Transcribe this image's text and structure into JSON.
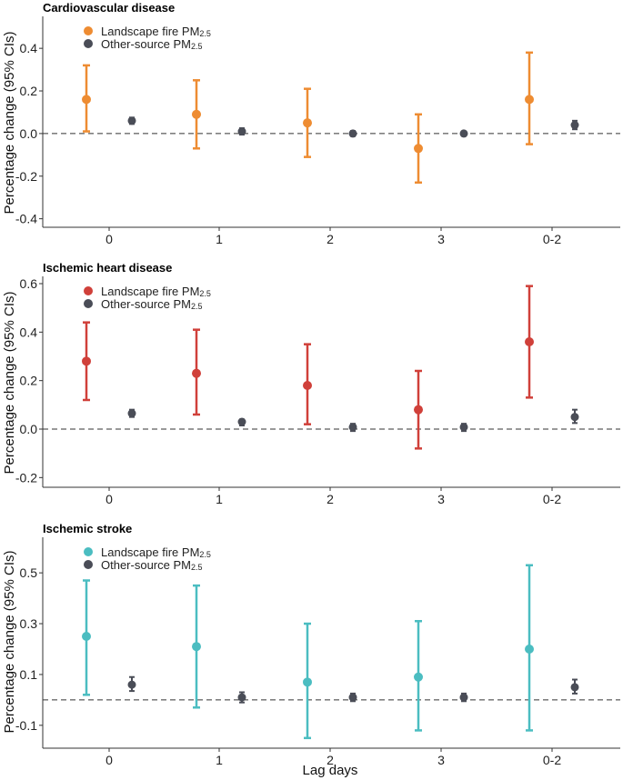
{
  "figure": {
    "ylabel": "Percentage change (95% CIs)",
    "xlabel": "Lag days",
    "legend_fire": "Landscape fire PM",
    "legend_other": "Other-source PM",
    "legend_subscript": "2.5",
    "reference_line": 0,
    "colors": {
      "fire_cardio": "#ee8c32",
      "fire_ihd": "#d0403a",
      "fire_stroke": "#4bbdc1",
      "other": "#4a4d57"
    }
  },
  "chart_data": [
    {
      "type": "scatter",
      "title": "Cardiovascular disease",
      "categories": [
        "0",
        "1",
        "2",
        "3",
        "0-2"
      ],
      "ylim": [
        -0.44,
        0.55
      ],
      "yticks": [
        -0.4,
        -0.2,
        0.0,
        0.2,
        0.4
      ],
      "ytick_labels": [
        "-0.4",
        "-0.2",
        "0.0",
        "0.2",
        "0.4"
      ],
      "series": [
        {
          "name": "Landscape fire PM2.5",
          "color": "#ee8c32",
          "values": [
            0.16,
            0.09,
            0.05,
            -0.07,
            0.16
          ],
          "lower": [
            0.01,
            -0.07,
            -0.11,
            -0.23,
            -0.05
          ],
          "upper": [
            0.32,
            0.25,
            0.21,
            0.09,
            0.38
          ]
        },
        {
          "name": "Other-source PM2.5",
          "color": "#4a4d57",
          "values": [
            0.06,
            0.01,
            0.0,
            0.0,
            0.04
          ],
          "lower": [
            0.045,
            -0.005,
            -0.012,
            -0.005,
            0.02
          ],
          "upper": [
            0.075,
            0.025,
            0.012,
            0.005,
            0.06
          ]
        }
      ]
    },
    {
      "type": "scatter",
      "title": "Ischemic heart disease",
      "categories": [
        "0",
        "1",
        "2",
        "3",
        "0-2"
      ],
      "ylim": [
        -0.24,
        0.63
      ],
      "yticks": [
        -0.2,
        0.0,
        0.2,
        0.4,
        0.6
      ],
      "ytick_labels": [
        "-0.2",
        "0.0",
        "0.2",
        "0.4",
        "0.6"
      ],
      "series": [
        {
          "name": "Landscape fire PM2.5",
          "color": "#d0403a",
          "values": [
            0.28,
            0.23,
            0.18,
            0.08,
            0.36
          ],
          "lower": [
            0.12,
            0.06,
            0.02,
            -0.08,
            0.13
          ],
          "upper": [
            0.44,
            0.41,
            0.35,
            0.24,
            0.59
          ]
        },
        {
          "name": "Other-source PM2.5",
          "color": "#4a4d57",
          "values": [
            0.065,
            0.03,
            0.008,
            0.008,
            0.05
          ],
          "lower": [
            0.05,
            0.015,
            -0.008,
            -0.008,
            0.025
          ],
          "upper": [
            0.08,
            0.04,
            0.022,
            0.022,
            0.08
          ]
        }
      ]
    },
    {
      "type": "scatter",
      "title": "Ischemic stroke",
      "categories": [
        "0",
        "1",
        "2",
        "3",
        "0-2"
      ],
      "ylim": [
        -0.19,
        0.64
      ],
      "yticks": [
        -0.1,
        0.1,
        0.3,
        0.5
      ],
      "ytick_labels": [
        "-0.1",
        "0.1",
        "0.3",
        "0.5"
      ],
      "series": [
        {
          "name": "Landscape fire PM2.5",
          "color": "#4bbdc1",
          "values": [
            0.25,
            0.21,
            0.07,
            0.09,
            0.2
          ],
          "lower": [
            0.02,
            -0.03,
            -0.15,
            -0.12,
            -0.12
          ],
          "upper": [
            0.47,
            0.45,
            0.3,
            0.31,
            0.53
          ]
        },
        {
          "name": "Other-source PM2.5",
          "color": "#4a4d57",
          "values": [
            0.06,
            0.01,
            0.01,
            0.01,
            0.05
          ],
          "lower": [
            0.035,
            -0.01,
            -0.005,
            -0.005,
            0.025
          ],
          "upper": [
            0.09,
            0.03,
            0.025,
            0.025,
            0.08
          ]
        }
      ]
    }
  ]
}
